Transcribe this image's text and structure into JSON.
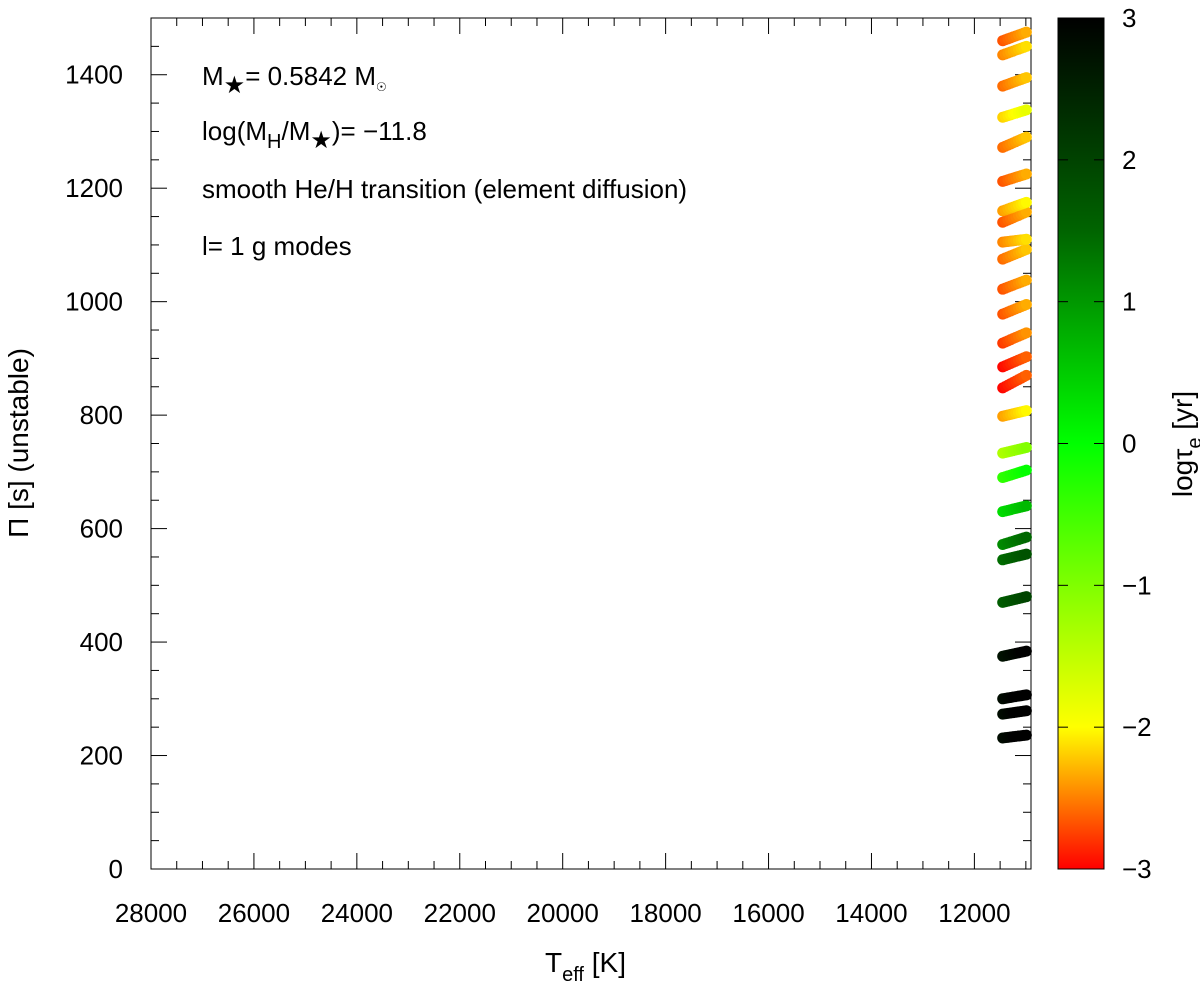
{
  "chart_data": {
    "type": "scatter",
    "xlabel": {
      "main": "T",
      "sub": "eff",
      "unit": " [K]"
    },
    "ylabel": "Π [s] (unstable)",
    "xlim": [
      28000,
      10900
    ],
    "ylim": [
      0,
      1500
    ],
    "x_reversed": true,
    "xticks": [
      28000,
      26000,
      24000,
      22000,
      20000,
      18000,
      16000,
      14000,
      12000
    ],
    "yticks": [
      0,
      200,
      400,
      600,
      800,
      1000,
      1200,
      1400
    ],
    "grid": false,
    "annotations": {
      "line1": {
        "a": "M",
        "star": "★",
        "b": "= 0.5842 M",
        "sun": "☉"
      },
      "line2": {
        "a": "log(M",
        "h": "H",
        "b": "/M",
        "star": "★",
        "c": ")= −11.8"
      },
      "line3": "smooth He/H transition (element diffusion)",
      "line4": "l= 1 g modes"
    },
    "colorbar": {
      "label": {
        "a": "logτ",
        "sub": "e",
        "b": " [yr]"
      },
      "range": [
        -3,
        3
      ],
      "ticks": [
        3,
        2,
        1,
        0,
        -1,
        -2,
        -3
      ],
      "tick_labels": [
        "3",
        "2",
        "1",
        "0",
        "−1",
        "−2",
        "−3"
      ],
      "colors": [
        "#000000",
        "#006400",
        "#00ff00",
        "#ffff00",
        "#ff0000"
      ],
      "color_stops": [
        3,
        1.5,
        0,
        -2,
        -3
      ]
    },
    "teff_range": [
      11450,
      10990
    ],
    "mode_tracks": [
      {
        "period_hot": 231,
        "period_cool": 236,
        "log_tau": 3.0
      },
      {
        "period_hot": 273,
        "period_cool": 279,
        "log_tau": 3.0
      },
      {
        "period_hot": 300,
        "period_cool": 307,
        "log_tau": 3.0
      },
      {
        "period_hot": 375,
        "period_cool": 384,
        "log_tau": 2.9
      },
      {
        "period_hot": 470,
        "period_cool": 480,
        "log_tau": 1.8
      },
      {
        "period_hot": 545,
        "period_cool": 555,
        "log_tau": 1.6
      },
      {
        "period_hot": 572,
        "period_cool": 585,
        "log_tau": 1.3
      },
      {
        "period_hot": 630,
        "period_cool": 640,
        "log_tau": 0.5
      },
      {
        "period_hot": 690,
        "period_cool": 703,
        "log_tau": -0.2
      },
      {
        "period_hot": 733,
        "period_cool": 743,
        "log_tau": -1.2
      },
      {
        "period_hot": 798,
        "period_cool": 808,
        "log_tau": -2.2
      },
      {
        "period_hot": 848,
        "period_cool": 870,
        "log_tau": -2.8
      },
      {
        "period_hot": 885,
        "period_cool": 903,
        "log_tau": -2.8
      },
      {
        "period_hot": 927,
        "period_cool": 945,
        "log_tau": -2.6
      },
      {
        "period_hot": 978,
        "period_cool": 995,
        "log_tau": -2.5
      },
      {
        "period_hot": 1022,
        "period_cool": 1038,
        "log_tau": -2.5
      },
      {
        "period_hot": 1075,
        "period_cool": 1092,
        "log_tau": -2.4
      },
      {
        "period_hot": 1105,
        "period_cool": 1110,
        "log_tau": -2.3
      },
      {
        "period_hot": 1140,
        "period_cool": 1158,
        "log_tau": -2.5
      },
      {
        "period_hot": 1160,
        "period_cool": 1175,
        "log_tau": -2.2
      },
      {
        "period_hot": 1212,
        "period_cool": 1225,
        "log_tau": -2.5
      },
      {
        "period_hot": 1272,
        "period_cool": 1290,
        "log_tau": -2.4
      },
      {
        "period_hot": 1325,
        "period_cool": 1338,
        "log_tau": -2.0
      },
      {
        "period_hot": 1380,
        "period_cool": 1395,
        "log_tau": -2.4
      },
      {
        "period_hot": 1435,
        "period_cool": 1450,
        "log_tau": -2.3
      },
      {
        "period_hot": 1460,
        "period_cool": 1475,
        "log_tau": -2.5
      }
    ]
  }
}
